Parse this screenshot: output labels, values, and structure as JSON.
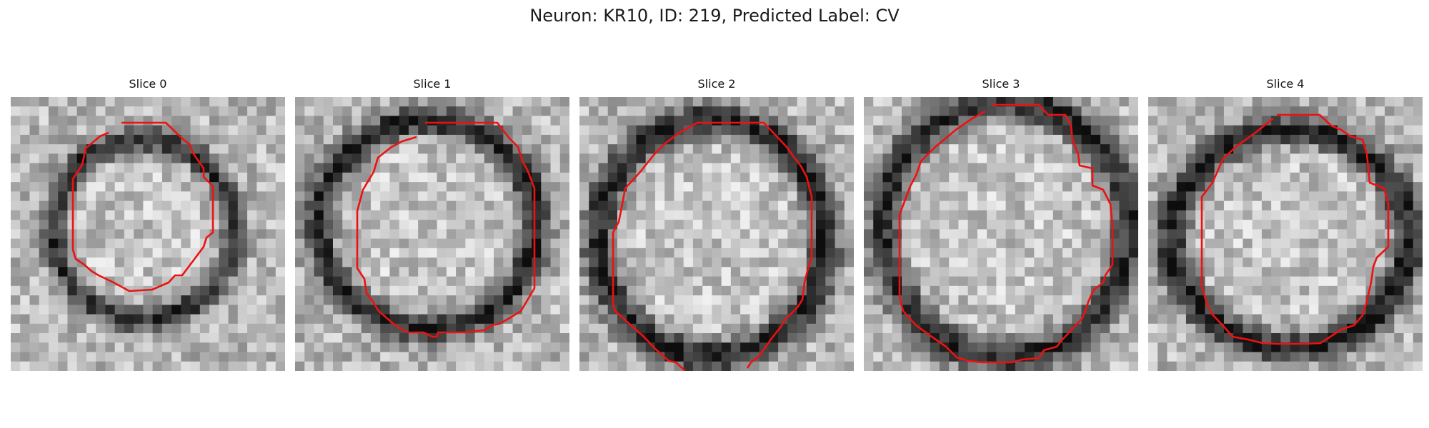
{
  "figure": {
    "title": "Neuron: KR10, ID: 219, Predicted Label: CV"
  },
  "slices": [
    {
      "label": "Slice 0"
    },
    {
      "label": "Slice 1"
    },
    {
      "label": "Slice 2"
    },
    {
      "label": "Slice 3"
    },
    {
      "label": "Slice 4"
    }
  ],
  "colors": {
    "contour": "#ee1111",
    "background": "#ffffff"
  }
}
